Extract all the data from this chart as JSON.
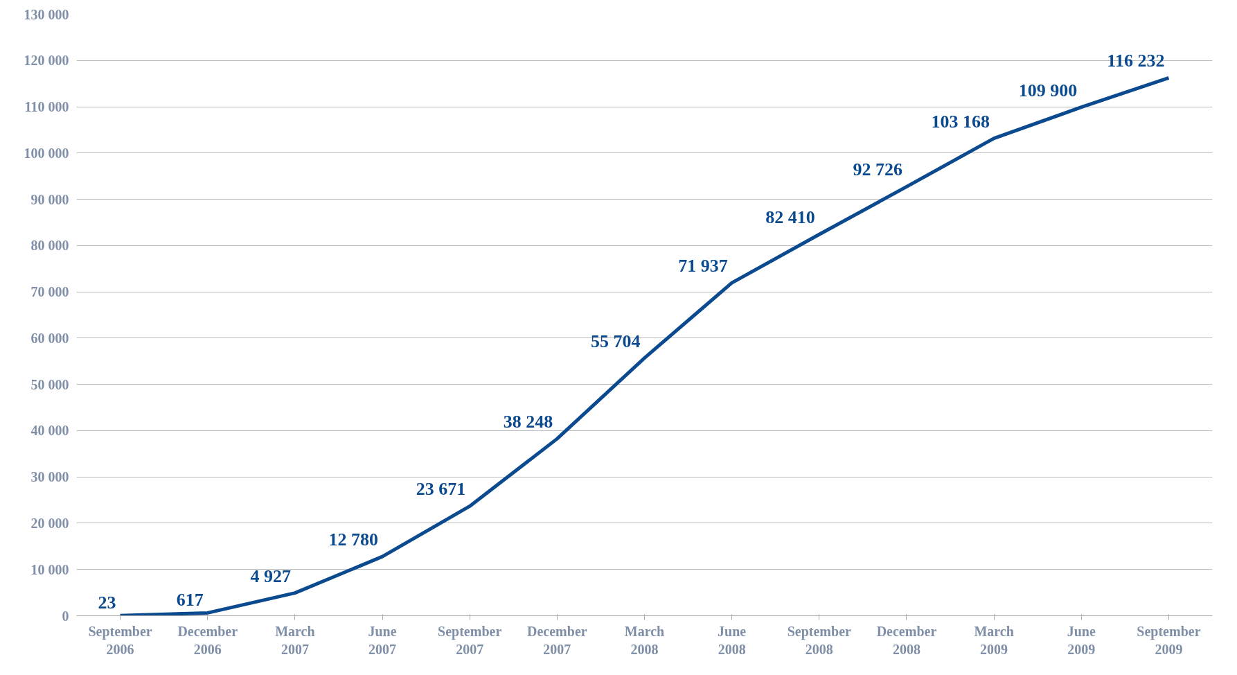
{
  "chart_data": {
    "type": "line",
    "categories": [
      "September 2006",
      "December 2006",
      "March 2007",
      "June 2007",
      "September 2007",
      "December 2007",
      "March 2008",
      "June 2008",
      "September 2008",
      "December 2008",
      "March 2009",
      "June 2009",
      "September 2009"
    ],
    "series": [
      {
        "color": "#0b4a8f",
        "values": [
          23,
          617,
          4927,
          12780,
          23671,
          38248,
          55704,
          71937,
          82410,
          92726,
          103168,
          109900,
          116232
        ],
        "value_labels": [
          "23",
          "617",
          "4 927",
          "12 780",
          "23 671",
          "38 248",
          "55 704",
          "71 937",
          "82 410",
          "92 726",
          "103 168",
          "109 900",
          "116 232"
        ]
      }
    ],
    "ylim": [
      0,
      130000
    ],
    "yticks": [
      {
        "value": 0,
        "label": "0"
      },
      {
        "value": 10000,
        "label": "10 000"
      },
      {
        "value": 20000,
        "label": "20 000"
      },
      {
        "value": 30000,
        "label": "30 000"
      },
      {
        "value": 40000,
        "label": "40 000"
      },
      {
        "value": 50000,
        "label": "50 000"
      },
      {
        "value": 60000,
        "label": "60 000"
      },
      {
        "value": 70000,
        "label": "70 000"
      },
      {
        "value": 80000,
        "label": "80 000"
      },
      {
        "value": 90000,
        "label": "90 000"
      },
      {
        "value": 100000,
        "label": "100 000"
      },
      {
        "value": 110000,
        "label": "110 000"
      },
      {
        "value": 120000,
        "label": "120 000"
      },
      {
        "value": 130000,
        "label": "130 000"
      }
    ],
    "grid": "y",
    "marker": "none",
    "line_style": "solid"
  }
}
